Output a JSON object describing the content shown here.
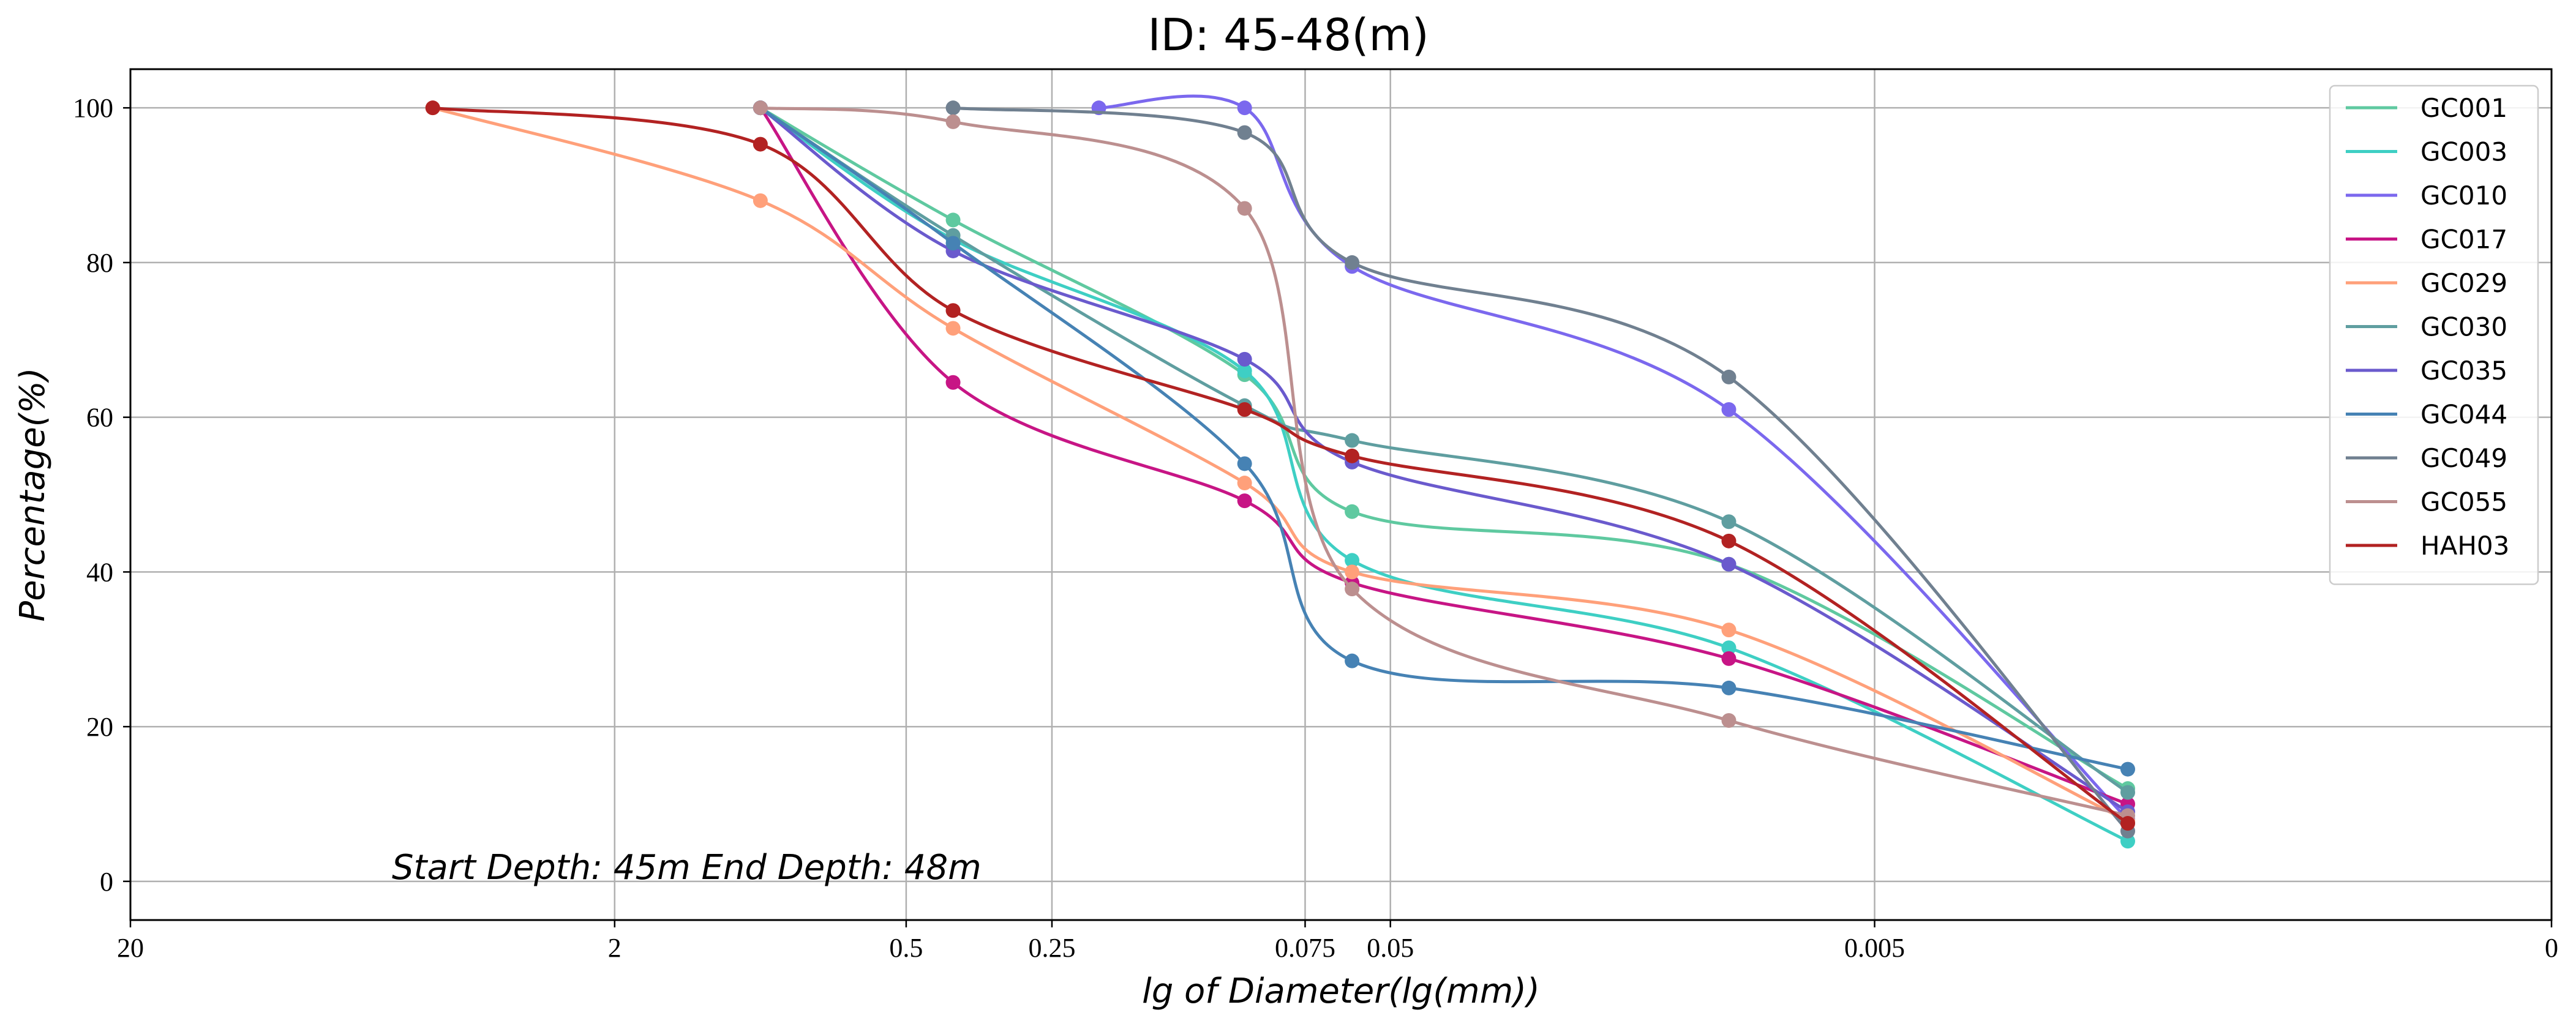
{
  "chart_data": {
    "type": "line",
    "title": "ID: 45-48(m)",
    "xlabel": "lg of Diameter(lg(mm))",
    "ylabel": "Percentage(%)",
    "x_scale": "log",
    "x_reversed": true,
    "x_ticks": [
      {
        "value": 20,
        "label": "20"
      },
      {
        "value": 2,
        "label": "2"
      },
      {
        "value": 0.5,
        "label": "0.5"
      },
      {
        "value": 0.25,
        "label": "0.25"
      },
      {
        "value": 0.075,
        "label": "0.075"
      },
      {
        "value": 0.05,
        "label": "0.05"
      },
      {
        "value": 0.005,
        "label": "0.005"
      },
      {
        "value": 0.0002,
        "label": "0"
      }
    ],
    "y_ticks": [
      0,
      20,
      40,
      60,
      80,
      100
    ],
    "ylim": [
      -5,
      105
    ],
    "grid": true,
    "legend_position": "top-right",
    "annotation": "Start Depth: 45m End Depth: 48m",
    "series": [
      {
        "name": "GC001",
        "color": "#5fc9a0",
        "x": [
          1,
          0.4,
          0.1,
          0.06,
          0.01,
          0.0015
        ],
        "y": [
          100,
          85.5,
          65.5,
          47.8,
          41,
          12
        ]
      },
      {
        "name": "GC003",
        "color": "#3ecfc4",
        "x": [
          1,
          0.4,
          0.1,
          0.06,
          0.01,
          0.0015
        ],
        "y": [
          100,
          83,
          66,
          41.5,
          30.2,
          5.2
        ]
      },
      {
        "name": "GC010",
        "color": "#7b68ee",
        "x": [
          0.2,
          0.1,
          0.06,
          0.01,
          0.0015
        ],
        "y": [
          100,
          100,
          79.5,
          61,
          8
        ]
      },
      {
        "name": "GC017",
        "color": "#c71585",
        "x": [
          1,
          0.4,
          0.1,
          0.06,
          0.01,
          0.0015
        ],
        "y": [
          100,
          64.5,
          49.2,
          38.6,
          28.8,
          10
        ]
      },
      {
        "name": "GC029",
        "color": "#ffa07a",
        "x": [
          4.75,
          1,
          0.4,
          0.1,
          0.06,
          0.01,
          0.0015
        ],
        "y": [
          100,
          88,
          71.5,
          51.5,
          40,
          32.5,
          7.8
        ]
      },
      {
        "name": "GC030",
        "color": "#5f9ea0",
        "x": [
          1,
          0.4,
          0.1,
          0.06,
          0.01,
          0.0015
        ],
        "y": [
          100,
          83.5,
          61.5,
          57,
          46.5,
          11.5
        ]
      },
      {
        "name": "GC035",
        "color": "#6a5acd",
        "x": [
          1,
          0.4,
          0.1,
          0.06,
          0.01,
          0.0015
        ],
        "y": [
          100,
          81.5,
          67.5,
          54.2,
          41,
          9
        ]
      },
      {
        "name": "GC044",
        "color": "#4682b4",
        "x": [
          1,
          0.4,
          0.1,
          0.06,
          0.01,
          0.0015
        ],
        "y": [
          100,
          82.5,
          54,
          28.5,
          25,
          14.5
        ]
      },
      {
        "name": "GC049",
        "color": "#708090",
        "x": [
          0.4,
          0.1,
          0.06,
          0.01,
          0.0015
        ],
        "y": [
          100,
          96.8,
          80,
          65.2,
          6.5
        ]
      },
      {
        "name": "GC055",
        "color": "#bc8f8f",
        "x": [
          1,
          0.4,
          0.1,
          0.06,
          0.01,
          0.0015
        ],
        "y": [
          100,
          98.2,
          87,
          37.8,
          20.8,
          8.5
        ]
      },
      {
        "name": "HAH03",
        "color": "#b22222",
        "x": [
          4.75,
          1,
          0.4,
          0.1,
          0.06,
          0.01,
          0.0015
        ],
        "y": [
          100,
          95.3,
          73.8,
          61,
          55,
          44,
          7.5
        ]
      }
    ]
  }
}
